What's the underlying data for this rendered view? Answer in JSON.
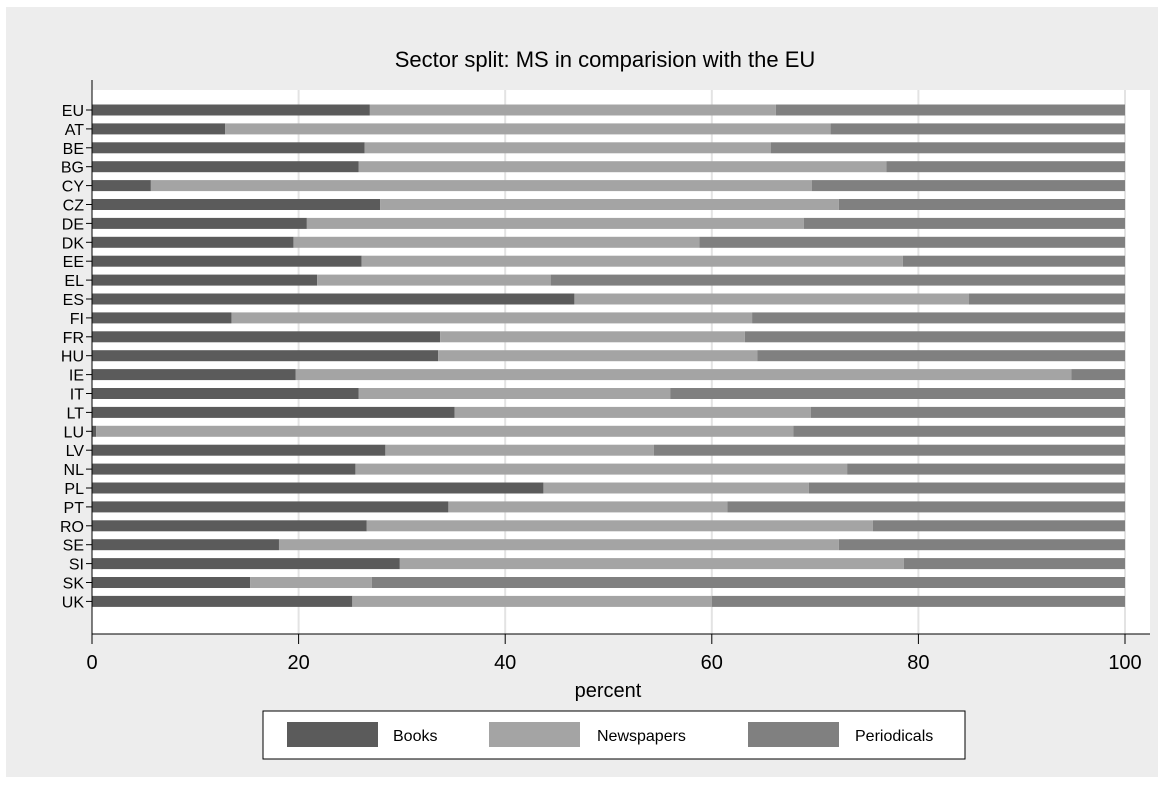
{
  "chart_data": {
    "type": "bar",
    "orientation": "horizontal",
    "stacked": true,
    "title": "Sector split: MS in comparision with the EU",
    "xlabel": "percent",
    "ylabel": "",
    "xlim": [
      0,
      100
    ],
    "xticks": [
      0,
      20,
      40,
      60,
      80,
      100
    ],
    "grid": true,
    "legend_position": "bottom",
    "categories": [
      "EU",
      "AT",
      "BE",
      "BG",
      "CY",
      "CZ",
      "DE",
      "DK",
      "EE",
      "EL",
      "ES",
      "FI",
      "FR",
      "HU",
      "IE",
      "IT",
      "LT",
      "LU",
      "LV",
      "NL",
      "PL",
      "PT",
      "RO",
      "SE",
      "SI",
      "SK",
      "UK"
    ],
    "series": [
      {
        "name": "Books",
        "color": "#5b5b5b",
        "values": [
          26.9,
          12.9,
          26.4,
          25.8,
          5.7,
          27.9,
          20.8,
          19.5,
          26.1,
          21.8,
          46.7,
          13.5,
          33.7,
          33.5,
          19.7,
          25.8,
          35.1,
          0.4,
          28.4,
          25.5,
          43.7,
          34.5,
          26.6,
          18.1,
          29.8,
          15.3,
          25.2
        ]
      },
      {
        "name": "Newspapers",
        "color": "#a4a4a4",
        "values": [
          39.3,
          58.6,
          39.3,
          51.1,
          64.0,
          44.4,
          48.1,
          39.3,
          52.4,
          22.6,
          38.2,
          50.4,
          29.5,
          30.9,
          75.1,
          30.2,
          34.5,
          67.5,
          26.0,
          47.6,
          25.7,
          27.0,
          49.0,
          54.2,
          48.8,
          11.8,
          34.8
        ]
      },
      {
        "name": "Periodicals",
        "color": "#808080",
        "values": [
          33.8,
          28.5,
          34.3,
          23.1,
          30.3,
          27.7,
          31.1,
          41.2,
          21.5,
          55.6,
          15.1,
          36.1,
          36.8,
          35.6,
          5.2,
          44.0,
          30.4,
          32.1,
          45.6,
          26.9,
          30.6,
          38.5,
          24.4,
          27.7,
          21.4,
          72.9,
          40.0
        ]
      }
    ]
  }
}
